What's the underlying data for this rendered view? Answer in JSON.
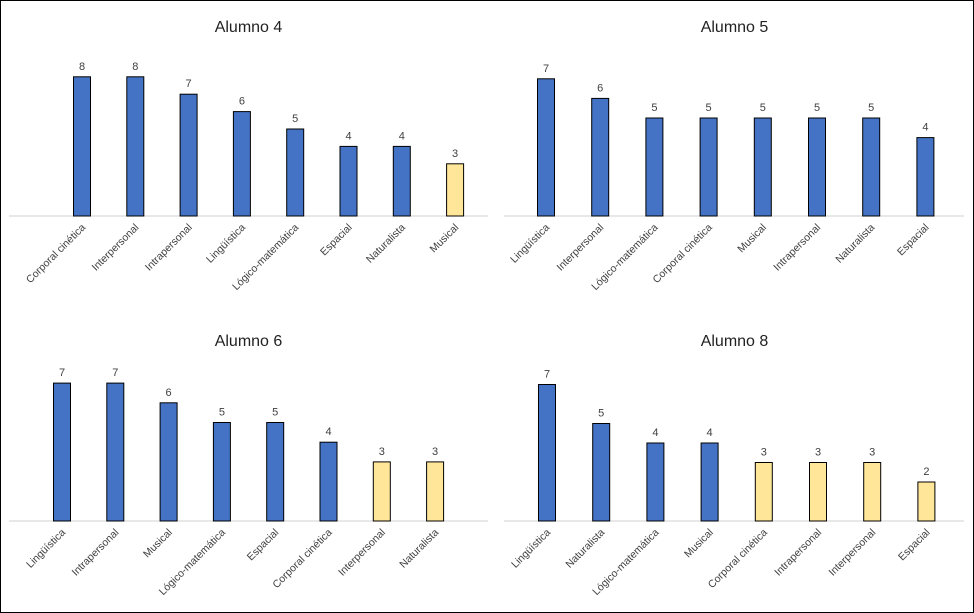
{
  "colors": {
    "bar_blue": "#4472c4",
    "bar_yellow": "#ffe699",
    "bar_stroke": "#000000",
    "axis": "#d0d0d0",
    "text": "#404040"
  },
  "chart_data": [
    {
      "type": "bar",
      "title": "Alumno 4",
      "categories": [
        "Corporal cinética",
        "Interpersonal",
        "Intrapersonal",
        "Lingüística",
        "Lógico-matemática",
        "Espacial",
        "Naturalista",
        "Musical"
      ],
      "values": [
        8,
        8,
        7,
        6,
        5,
        4,
        4,
        3
      ],
      "highlight": [
        false,
        false,
        false,
        false,
        false,
        false,
        false,
        true
      ],
      "ylim": [
        0,
        8
      ]
    },
    {
      "type": "bar",
      "title": "Alumno 5",
      "categories": [
        "Lingüística",
        "Interpersonal",
        "Lógico-matemática",
        "Corporal cinética",
        "Musical",
        "Intrapersonal",
        "Naturalista",
        "Espacial"
      ],
      "values": [
        7,
        6,
        5,
        5,
        5,
        5,
        5,
        4
      ],
      "highlight": [
        false,
        false,
        false,
        false,
        false,
        false,
        false,
        false
      ],
      "ylim": [
        0,
        7
      ]
    },
    {
      "type": "bar",
      "title": "Alumno 6",
      "categories": [
        "Lingüística",
        "Intrapersonal",
        "Musical",
        "Lógico-matemática",
        "Espacial",
        "Corporal cinética",
        "Interpersonal",
        "Naturalista"
      ],
      "values": [
        7,
        7,
        6,
        5,
        5,
        4,
        3,
        3
      ],
      "highlight": [
        false,
        false,
        false,
        false,
        false,
        false,
        true,
        true
      ],
      "ylim": [
        0,
        7
      ]
    },
    {
      "type": "bar",
      "title": "Alumno 8",
      "categories": [
        "Lingüística",
        "Naturalista",
        "Lógico-matemática",
        "Musical",
        "Corporal cinética",
        "Intrapersonal",
        "Interpersonal",
        "Espacial"
      ],
      "values": [
        7,
        5,
        4,
        4,
        3,
        3,
        3,
        2
      ],
      "highlight": [
        false,
        false,
        false,
        false,
        true,
        true,
        true,
        true
      ],
      "ylim": [
        0,
        7
      ]
    }
  ]
}
